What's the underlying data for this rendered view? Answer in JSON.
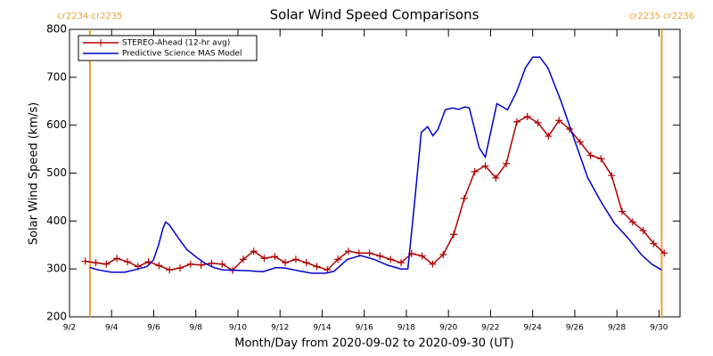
{
  "chart_data": {
    "type": "line",
    "title": "Solar Wind Speed Comparisons",
    "xlabel": "Month/Day from 2020-09-02 to 2020-09-30 (UT)",
    "ylabel": "Solar Wind Speed (km/s)",
    "xlim": [
      0,
      29
    ],
    "xticks": [
      {
        "value": 0,
        "label": "9/2"
      },
      {
        "value": 2,
        "label": "9/4"
      },
      {
        "value": 4,
        "label": "9/6"
      },
      {
        "value": 6,
        "label": "9/8"
      },
      {
        "value": 8,
        "label": "9/10"
      },
      {
        "value": 10,
        "label": "9/12"
      },
      {
        "value": 12,
        "label": "9/14"
      },
      {
        "value": 14,
        "label": "9/16"
      },
      {
        "value": 16,
        "label": "9/18"
      },
      {
        "value": 18,
        "label": "9/20"
      },
      {
        "value": 20,
        "label": "9/22"
      },
      {
        "value": 22,
        "label": "9/24"
      },
      {
        "value": 24,
        "label": "9/26"
      },
      {
        "value": 26,
        "label": "9/28"
      },
      {
        "value": 28,
        "label": "9/30"
      }
    ],
    "ylim": [
      200,
      800
    ],
    "yticks": [
      200,
      300,
      400,
      500,
      600,
      700,
      800
    ],
    "legend": "upper left",
    "annotations": [
      {
        "text": "cr2234 cr2235",
        "x": 0.97,
        "color": "#f0a030"
      },
      {
        "text": "cr2235 cr2236",
        "x": 28.13,
        "color": "#f0a030"
      }
    ],
    "series": [
      {
        "name": "STEREO-Ahead (12-hr avg)",
        "color": "#b00000",
        "marker": "plus",
        "x": [
          0.75,
          1.25,
          1.75,
          2.25,
          2.75,
          3.25,
          3.75,
          4.25,
          4.75,
          5.25,
          5.75,
          6.25,
          6.75,
          7.25,
          7.75,
          8.25,
          8.75,
          9.25,
          9.75,
          10.25,
          10.75,
          11.25,
          11.75,
          12.25,
          12.75,
          13.25,
          13.75,
          14.25,
          14.75,
          15.25,
          15.75,
          16.25,
          16.75,
          17.25,
          17.75,
          18.25,
          18.75,
          19.25,
          19.75,
          20.25,
          20.75,
          21.25,
          21.75,
          22.25,
          22.75,
          23.25,
          23.75,
          24.25,
          24.75,
          25.25,
          25.75,
          26.25,
          26.75,
          27.25,
          27.75,
          28.25
        ],
        "values": [
          316,
          313,
          310,
          322,
          315,
          305,
          315,
          307,
          298,
          302,
          310,
          308,
          312,
          310,
          297,
          320,
          337,
          322,
          326,
          313,
          320,
          313,
          305,
          298,
          320,
          337,
          333,
          333,
          327,
          320,
          313,
          332,
          327,
          310,
          330,
          372,
          447,
          503,
          515,
          490,
          520,
          607,
          618,
          605,
          577,
          610,
          592,
          565,
          537,
          530,
          495,
          420,
          398,
          380,
          353,
          333
        ]
      },
      {
        "name": "Predictive Science MAS Model",
        "color": "#0000cc",
        "x": [
          0.97,
          1.35,
          1.99,
          2.62,
          3.26,
          3.68,
          3.98,
          4.23,
          4.44,
          4.57,
          4.74,
          5.16,
          5.58,
          6.01,
          6.43,
          6.85,
          7.28,
          7.91,
          8.54,
          9.18,
          9.81,
          10.24,
          10.87,
          11.51,
          12.14,
          12.56,
          13.2,
          13.83,
          14.47,
          15.1,
          15.74,
          16.07,
          16.37,
          16.71,
          17.01,
          17.26,
          17.51,
          17.85,
          18.19,
          18.49,
          18.78,
          18.99,
          19.46,
          19.75,
          20.3,
          20.81,
          21.24,
          21.66,
          22.0,
          22.34,
          22.72,
          23.35,
          23.98,
          24.62,
          25.25,
          25.89,
          26.52,
          27.16,
          27.66,
          28.13
        ],
        "values": [
          303,
          298,
          293,
          293,
          300,
          305,
          318,
          350,
          385,
          398,
          392,
          365,
          340,
          325,
          312,
          303,
          298,
          297,
          296,
          294,
          303,
          302,
          296,
          291,
          291,
          295,
          320,
          328,
          320,
          308,
          300,
          300,
          430,
          585,
          597,
          578,
          592,
          632,
          636,
          633,
          638,
          636,
          553,
          533,
          645,
          632,
          670,
          720,
          742,
          742,
          720,
          650,
          570,
          490,
          440,
          395,
          365,
          330,
          310,
          298
        ]
      }
    ]
  }
}
